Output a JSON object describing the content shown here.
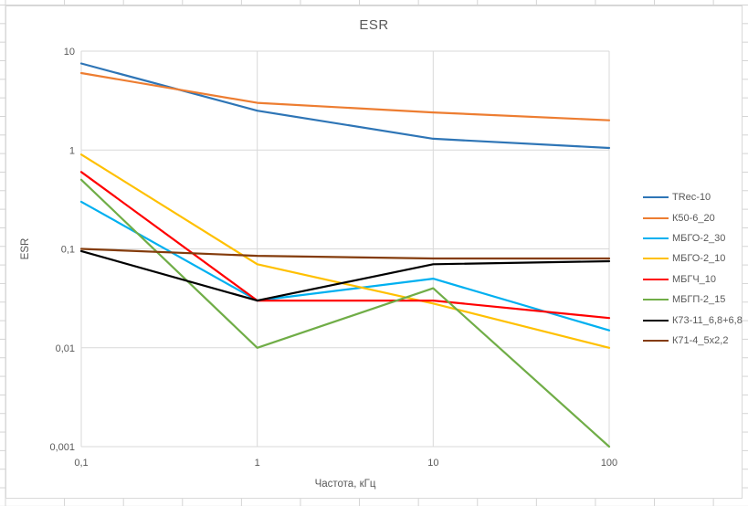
{
  "chart": {
    "title": "ESR",
    "x_axis_title": "Частота, кГц",
    "y_axis_title": "ESR",
    "colors": {
      "gridline": "#d9d9d9",
      "tick_text": "#595959",
      "title_text": "#595959",
      "sheet_gridline": "#d4d4d4",
      "chart_border": "#d9d9d9"
    }
  },
  "chart_data": {
    "type": "line",
    "title": "ESR",
    "xlabel": "Частота, кГц",
    "ylabel": "ESR",
    "x_scale": "log",
    "y_scale": "log",
    "xlim": [
      0.1,
      100
    ],
    "ylim": [
      0.001,
      10
    ],
    "grid": true,
    "legend_position": "right",
    "x": [
      0.1,
      1,
      10,
      100
    ],
    "x_tick_values": [
      0.1,
      1,
      10,
      100
    ],
    "x_tick_labels": [
      "0,1",
      "1",
      "10",
      "100"
    ],
    "y_tick_values": [
      10,
      1,
      0.1,
      0.01,
      0.001
    ],
    "y_tick_labels": [
      "10",
      "1",
      "0,1",
      "0,01",
      "0,001"
    ],
    "series": [
      {
        "name": "TRec-10",
        "color": "#2E75B6",
        "values": [
          7.5,
          2.5,
          1.3,
          1.05
        ]
      },
      {
        "name": "К50-6_20",
        "color": "#ED7D31",
        "values": [
          6,
          3,
          2.4,
          2
        ]
      },
      {
        "name": "МБГО-2_30",
        "color": "#00B0F0",
        "values": [
          0.3,
          0.03,
          0.05,
          0.015
        ]
      },
      {
        "name": "МБГО-2_10",
        "color": "#FFC000",
        "values": [
          0.9,
          0.07,
          0.028,
          0.01
        ]
      },
      {
        "name": "МБГЧ_10",
        "color": "#FF0000",
        "values": [
          0.6,
          0.03,
          0.03,
          0.02
        ]
      },
      {
        "name": "МБГП-2_15",
        "color": "#70AD47",
        "values": [
          0.5,
          0.01,
          0.04,
          0.001
        ]
      },
      {
        "name": "К73-11_6,8+6,8",
        "color": "#000000",
        "values": [
          0.095,
          0.03,
          0.07,
          0.075
        ]
      },
      {
        "name": "К71-4_5x2,2",
        "color": "#843C0C",
        "values": [
          0.1,
          0.085,
          0.08,
          0.08
        ]
      }
    ]
  }
}
